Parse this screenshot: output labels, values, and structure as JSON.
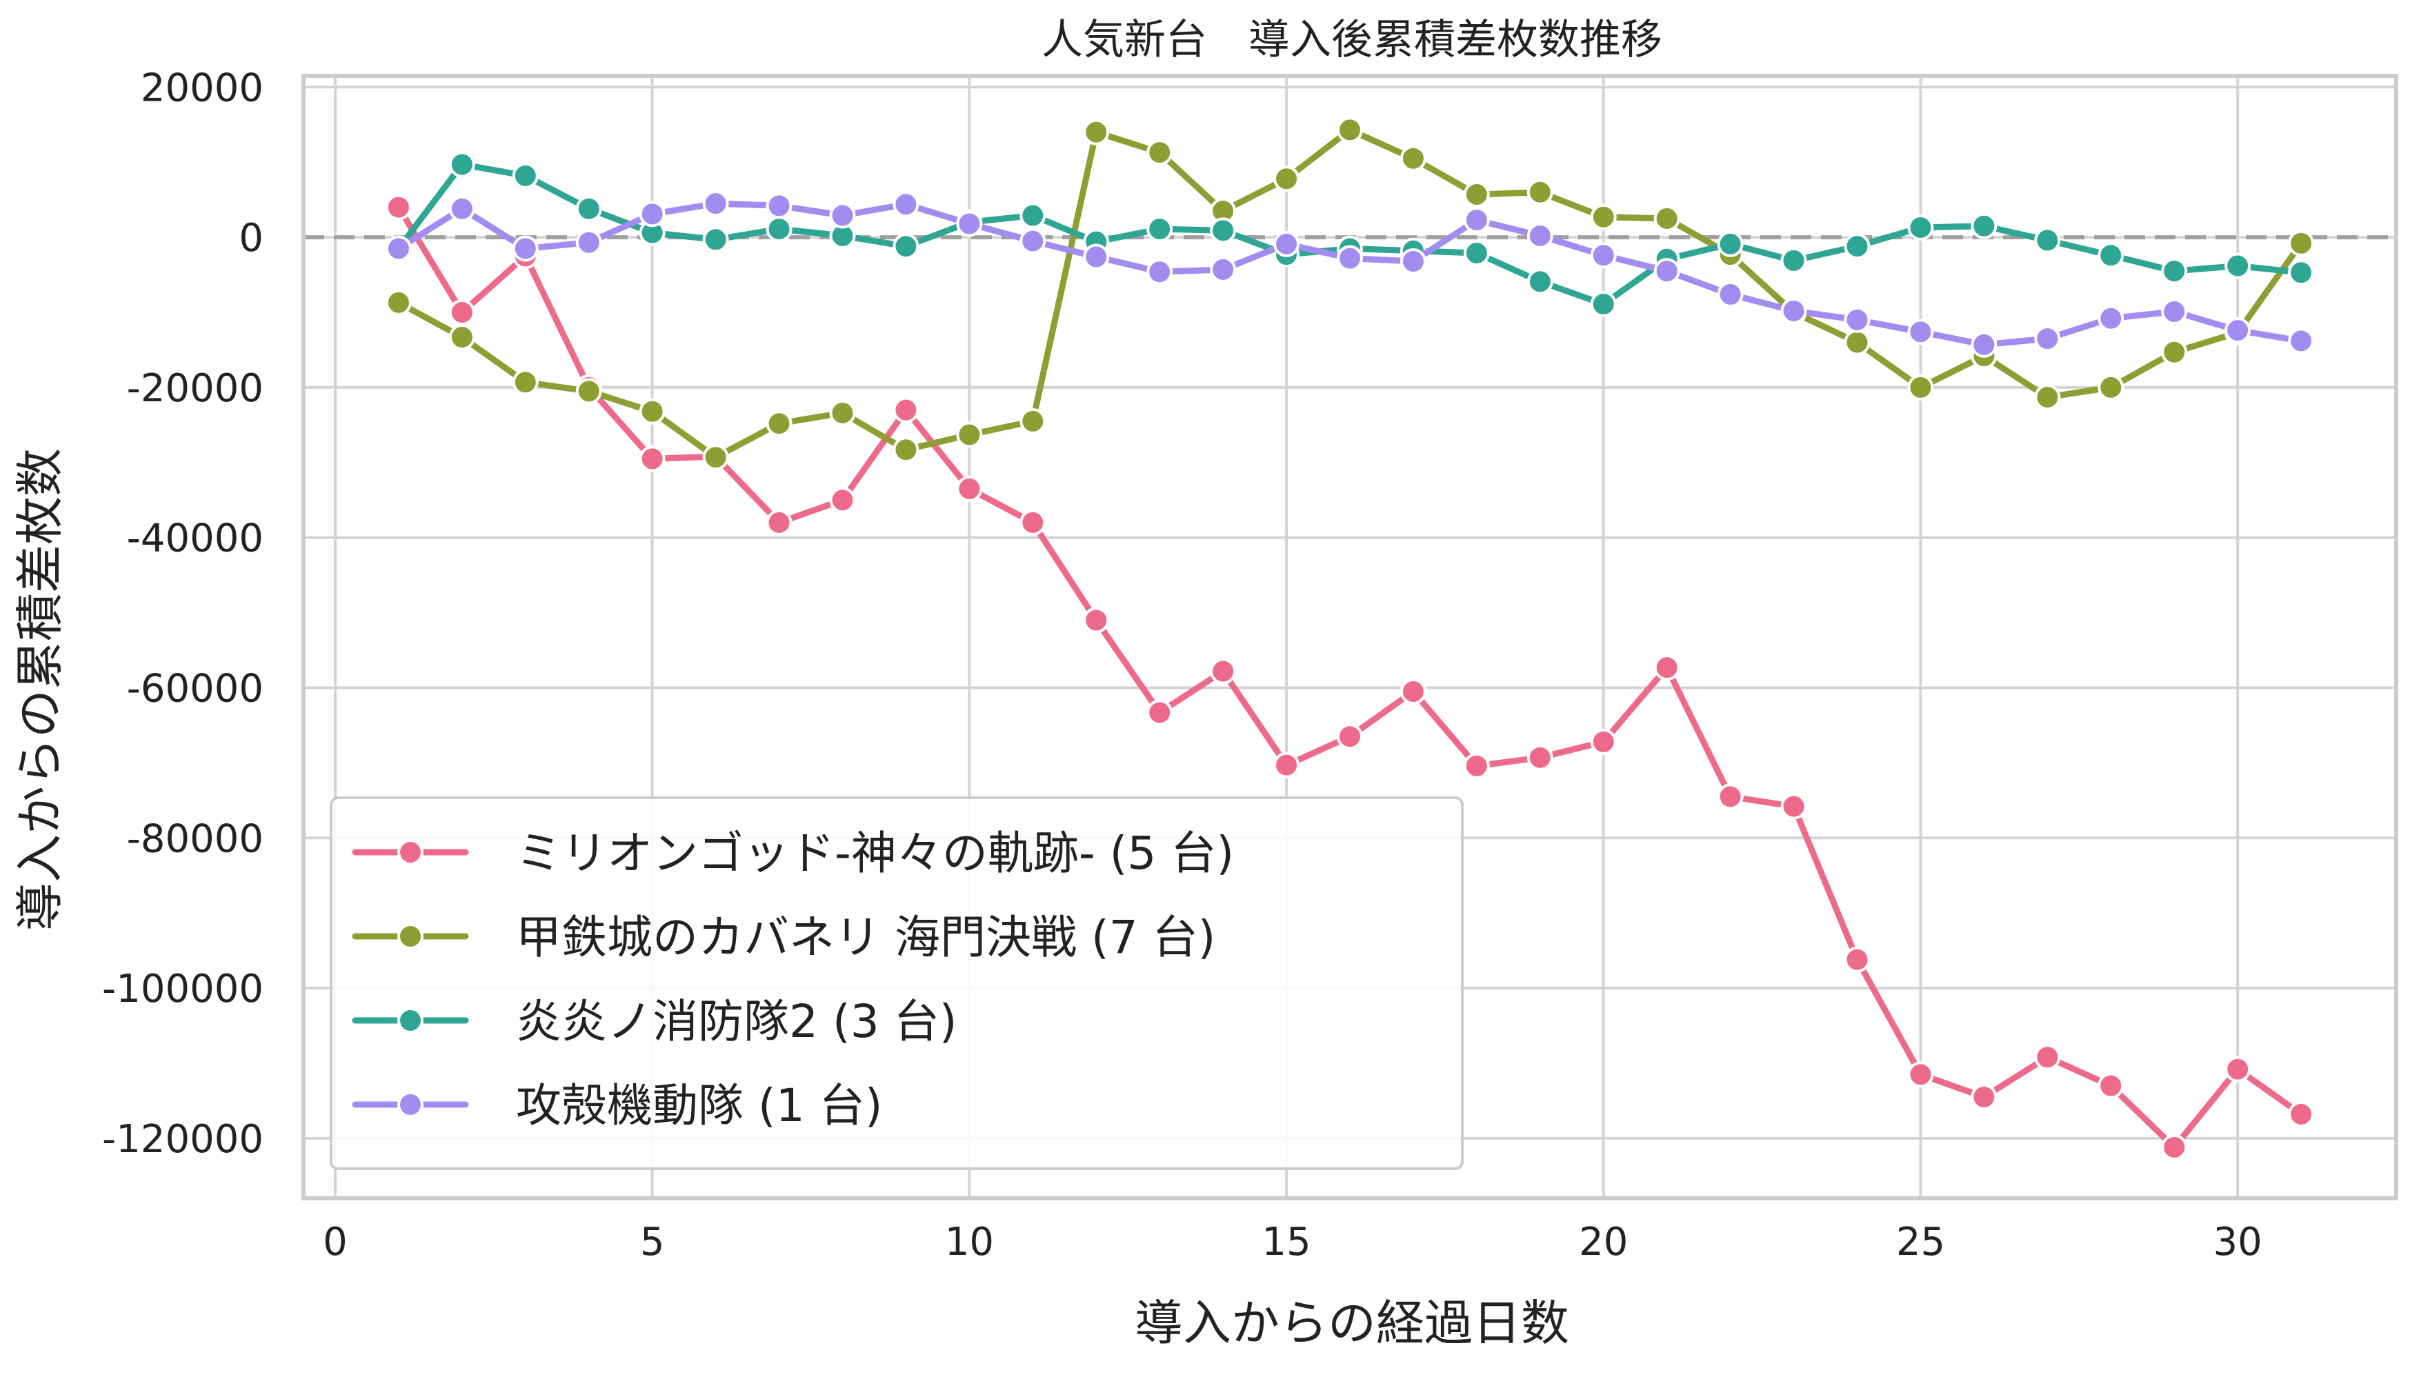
{
  "chart_data": {
    "type": "line",
    "title": "人気新台　導入後累積差枚数推移",
    "xlabel": "導入からの経過日数",
    "ylabel": "導入からの累積差枚数",
    "xlim": [
      -0.5,
      32.5
    ],
    "ylim": [
      -128000,
      21500
    ],
    "xticks": [
      0,
      5,
      10,
      15,
      20,
      25,
      30
    ],
    "xtick_labels": [
      "0",
      "5",
      "10",
      "15",
      "20",
      "25",
      "30"
    ],
    "yticks": [
      20000,
      0,
      -20000,
      -40000,
      -60000,
      -80000,
      -100000,
      -120000
    ],
    "ytick_labels": [
      "20000",
      "0",
      "-20000",
      "-40000",
      "-60000",
      "-80000",
      "-100000",
      "-120000"
    ],
    "grid": true,
    "reference_line": {
      "y": 0,
      "style": "dashed",
      "color": "#a0a0a0"
    },
    "legend_position": "bottom-left",
    "x": [
      1,
      2,
      3,
      4,
      5,
      6,
      7,
      8,
      9,
      10,
      11,
      12,
      13,
      14,
      15,
      16,
      17,
      18,
      19,
      20,
      21,
      22,
      23,
      24,
      25,
      26,
      27,
      28,
      29,
      30,
      31
    ],
    "series": [
      {
        "name": "ミリオンゴッド-神々の軌跡- (5 台)",
        "color": "#ee6a8b",
        "values": [
          4000,
          -10000,
          -2500,
          -20000,
          -29500,
          -29200,
          -38000,
          -35000,
          -23000,
          -33500,
          -38000,
          -51000,
          -63300,
          -57800,
          -70300,
          -66500,
          -60500,
          -70400,
          -69300,
          -67200,
          -57300,
          -74500,
          -75800,
          -96200,
          -111500,
          -114500,
          -109200,
          -113000,
          -121200,
          -110800,
          -116800
        ]
      },
      {
        "name": "甲鉄城のカバネリ 海門決戦 (7 台)",
        "color": "#8f9e32",
        "values": [
          -8700,
          -13300,
          -19300,
          -20500,
          -23200,
          -29300,
          -24800,
          -23400,
          -28300,
          -26300,
          -24500,
          14000,
          11300,
          3500,
          7800,
          14300,
          10500,
          5700,
          6000,
          2700,
          2500,
          -2300,
          -10000,
          -14000,
          -20000,
          -15800,
          -21300,
          -20000,
          -15300,
          -12700,
          -800
        ]
      },
      {
        "name": "炎炎ノ消防隊2 (3 台)",
        "color": "#2ea693",
        "values": [
          -1500,
          9700,
          8200,
          3800,
          600,
          -300,
          1100,
          200,
          -1200,
          2000,
          2900,
          -600,
          1100,
          900,
          -2300,
          -1500,
          -1800,
          -2100,
          -5900,
          -8900,
          -2900,
          -900,
          -3100,
          -1200,
          1300,
          1500,
          -400,
          -2400,
          -4500,
          -3800,
          -4700
        ]
      },
      {
        "name": "攻殻機動隊 (1 台)",
        "color": "#a38cf0",
        "values": [
          -1500,
          3800,
          -1500,
          -700,
          3100,
          4500,
          4200,
          2900,
          4400,
          1800,
          -500,
          -2600,
          -4600,
          -4300,
          -900,
          -2800,
          -3200,
          2300,
          200,
          -2400,
          -4500,
          -7600,
          -9800,
          -11000,
          -12600,
          -14300,
          -13500,
          -10800,
          -9900,
          -12400,
          -13800
        ]
      }
    ]
  }
}
